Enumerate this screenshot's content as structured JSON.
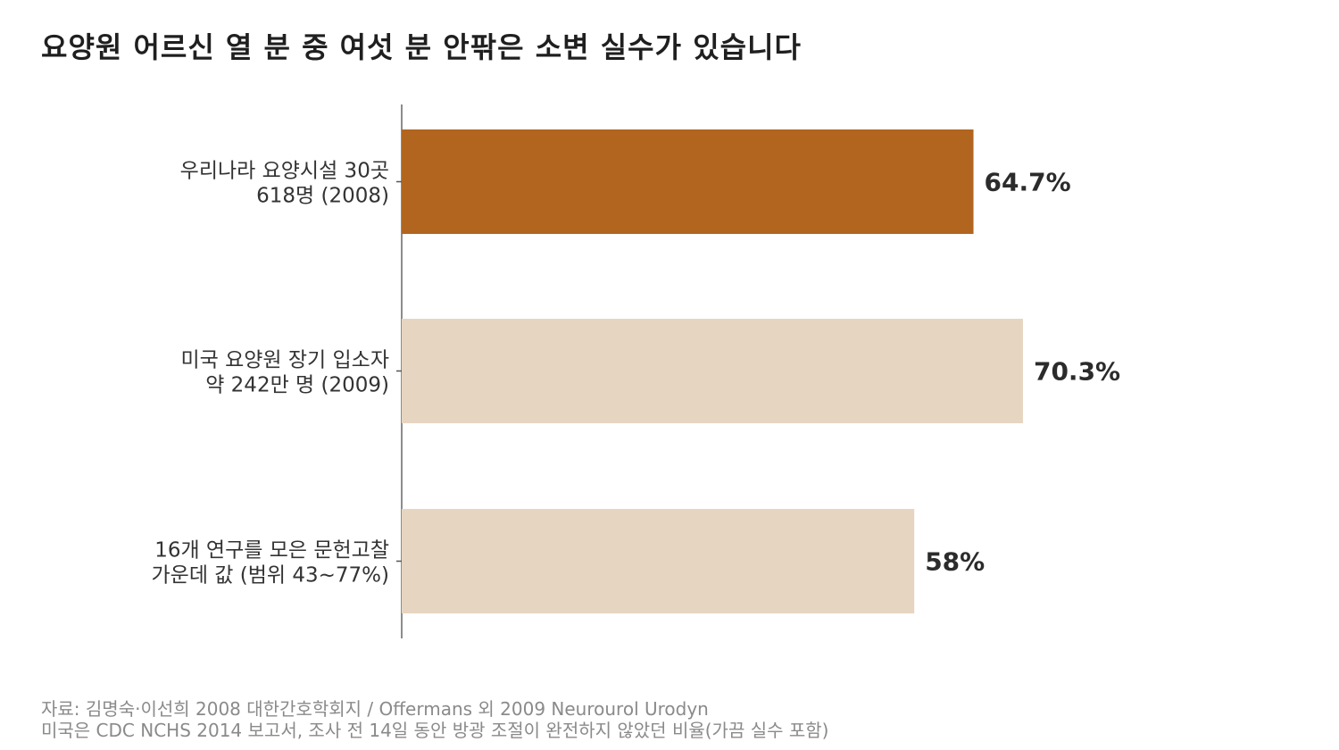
{
  "title": "요양원 어르신 열 분 중 여섯 분 안팎은 소변 실수가 있습니다",
  "chart_data": {
    "type": "bar",
    "orientation": "horizontal",
    "categories": [
      [
        "우리나라 요양시설 30곳",
        "618명 (2008)"
      ],
      [
        "미국 요양원 장기 입소자",
        "약 242만 명 (2009)"
      ],
      [
        "16개 연구를 모은 문헌고찰",
        "가운데 값 (범위 43~77%)"
      ]
    ],
    "values": [
      64.7,
      70.3,
      58
    ],
    "value_labels": [
      "64.7%",
      "70.3%",
      "58%"
    ],
    "colors": [
      "#b1651f",
      "#e6d5c0",
      "#e6d5c0"
    ],
    "xlim": [
      0,
      100
    ],
    "grid": false,
    "legend": "none"
  },
  "source": {
    "line1": "자료: 김명숙·이선희 2008 대한간호학회지 / Offermans 외 2009 Neurourol Urodyn",
    "line2": "미국은 CDC NCHS 2014 보고서, 조사 전 14일 동안 방광 조절이 완전하지 않았던 비율(가끔 실수 포함)"
  }
}
